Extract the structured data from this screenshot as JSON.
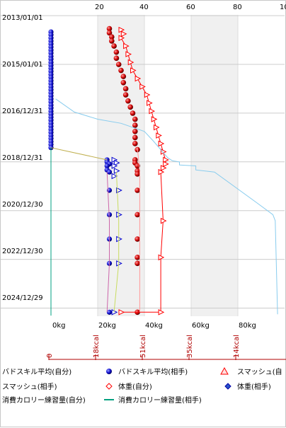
{
  "chart_data": {
    "type": "scatter",
    "orientation": "vertical-time",
    "title": "",
    "top_axis": {
      "ticks": [
        "0",
        "20",
        "40",
        "60",
        "80",
        "10"
      ],
      "range": [
        0,
        100
      ]
    },
    "date_axis": {
      "ticks": [
        "2013/01/01",
        "2015/01/01",
        "2016/12/31",
        "2018/12/31",
        "2020/12/30",
        "2022/12/30",
        "2024/12/29"
      ],
      "range": [
        "2012/12/20",
        "2025/04/30"
      ]
    },
    "weight_axis": {
      "ticks": [
        "0kg",
        "20kg",
        "40kg",
        "60kg",
        "80kg"
      ],
      "range_kg": [
        0,
        100
      ]
    },
    "calorie_axis": {
      "ticks": [
        "0",
        "18kcal",
        "51kcal",
        "35kcal",
        "14kcal"
      ]
    },
    "grid": true,
    "shaded_bands": [
      [
        20,
        40
      ],
      [
        60,
        80
      ]
    ],
    "legend": {
      "placement": "bottom",
      "items": [
        {
          "label": "バドスキル平均(自分)",
          "color": "#0000cc",
          "marker": "ball"
        },
        {
          "label": "バドスキル平均(相手)",
          "color": "#0000cc",
          "marker": "ball"
        },
        {
          "label": "スマッシュ(自",
          "color": "#ff0000",
          "marker": "triangle-up"
        },
        {
          "label": "スマッシュ(相手)",
          "color": "#ff0000",
          "marker": "diamond-open"
        },
        {
          "label": "体重(自分)",
          "color": "#ff0000",
          "marker": "diamond-open"
        },
        {
          "label": "体重(相手)",
          "color": "#0000cc",
          "marker": "diamond"
        },
        {
          "label": "消費カロリー練習量(自分)",
          "color": "#00a080",
          "marker": "line"
        },
        {
          "label": "消費カロリー練習量(相手)",
          "color": "#00a080",
          "marker": "line"
        }
      ]
    },
    "series": [
      {
        "color": "#0000cc",
        "marker": "ball-blue",
        "points": [
          {
            "x": 0,
            "date": "2013/09/01"
          },
          {
            "x": 0,
            "date": "2013/10/15"
          },
          {
            "x": 0,
            "date": "2013/12/01"
          },
          {
            "x": 0,
            "date": "2014/01/15"
          },
          {
            "x": 0,
            "date": "2014/03/01"
          },
          {
            "x": 0,
            "date": "2014/04/15"
          },
          {
            "x": 0,
            "date": "2014/06/01"
          },
          {
            "x": 0,
            "date": "2014/07/15"
          },
          {
            "x": 0,
            "date": "2014/09/01"
          },
          {
            "x": 0,
            "date": "2014/10/15"
          },
          {
            "x": 0,
            "date": "2014/12/01"
          },
          {
            "x": 0,
            "date": "2015/01/15"
          },
          {
            "x": 0,
            "date": "2015/03/01"
          },
          {
            "x": 0,
            "date": "2015/04/15"
          },
          {
            "x": 0,
            "date": "2015/06/01"
          },
          {
            "x": 0,
            "date": "2015/07/15"
          },
          {
            "x": 0,
            "date": "2015/09/01"
          },
          {
            "x": 0,
            "date": "2015/10/15"
          },
          {
            "x": 0,
            "date": "2015/12/01"
          },
          {
            "x": 0,
            "date": "2016/01/15"
          },
          {
            "x": 0,
            "date": "2016/03/01"
          },
          {
            "x": 0,
            "date": "2016/04/15"
          },
          {
            "x": 0,
            "date": "2016/06/01"
          },
          {
            "x": 0,
            "date": "2016/07/15"
          },
          {
            "x": 0,
            "date": "2016/09/01"
          },
          {
            "x": 0,
            "date": "2016/10/15"
          },
          {
            "x": 0,
            "date": "2016/12/01"
          },
          {
            "x": 0,
            "date": "2017/01/15"
          },
          {
            "x": 0,
            "date": "2017/03/01"
          },
          {
            "x": 0,
            "date": "2017/04/15"
          },
          {
            "x": 0,
            "date": "2017/06/01"
          },
          {
            "x": 0,
            "date": "2017/07/15"
          },
          {
            "x": 0,
            "date": "2017/09/01"
          },
          {
            "x": 0,
            "date": "2017/10/15"
          },
          {
            "x": 0,
            "date": "2017/12/01"
          },
          {
            "x": 0,
            "date": "2018/01/15"
          },
          {
            "x": 0,
            "date": "2018/03/01"
          },
          {
            "x": 0,
            "date": "2018/04/15"
          },
          {
            "x": 0,
            "date": "2018/06/01"
          },
          {
            "x": 24,
            "date": "2018/12/01"
          },
          {
            "x": 24,
            "date": "2019/01/01"
          },
          {
            "x": 25,
            "date": "2019/02/01"
          },
          {
            "x": 24,
            "date": "2019/03/01"
          },
          {
            "x": 24,
            "date": "2019/05/01"
          },
          {
            "x": 25,
            "date": "2019/06/01"
          },
          {
            "x": 25,
            "date": "2020/03/01"
          },
          {
            "x": 25,
            "date": "2021/03/01"
          },
          {
            "x": 25,
            "date": "2022/03/01"
          },
          {
            "x": 25,
            "date": "2023/03/01"
          },
          {
            "x": 25,
            "date": "2025/03/01"
          }
        ]
      },
      {
        "color": "#ff0000",
        "marker": "ball-red",
        "points": [
          {
            "x": 25,
            "date": "2013/07/15"
          },
          {
            "x": 25,
            "date": "2013/09/15"
          },
          {
            "x": 26,
            "date": "2013/11/15"
          },
          {
            "x": 26,
            "date": "2014/01/15"
          },
          {
            "x": 27,
            "date": "2014/04/01"
          },
          {
            "x": 28,
            "date": "2014/07/01"
          },
          {
            "x": 28,
            "date": "2014/10/01"
          },
          {
            "x": 29,
            "date": "2015/01/01"
          },
          {
            "x": 30,
            "date": "2015/04/01"
          },
          {
            "x": 31,
            "date": "2015/07/01"
          },
          {
            "x": 31,
            "date": "2015/10/01"
          },
          {
            "x": 32,
            "date": "2016/01/01"
          },
          {
            "x": 32,
            "date": "2016/04/01"
          },
          {
            "x": 33,
            "date": "2016/07/01"
          },
          {
            "x": 34,
            "date": "2016/10/01"
          },
          {
            "x": 35,
            "date": "2017/01/01"
          },
          {
            "x": 36,
            "date": "2017/04/01"
          },
          {
            "x": 36,
            "date": "2017/07/01"
          },
          {
            "x": 36,
            "date": "2017/10/01"
          },
          {
            "x": 36,
            "date": "2018/01/01"
          },
          {
            "x": 36,
            "date": "2018/04/01"
          },
          {
            "x": 37,
            "date": "2018/07/01"
          },
          {
            "x": 36,
            "date": "2018/12/01"
          },
          {
            "x": 36,
            "date": "2019/01/15"
          },
          {
            "x": 37,
            "date": "2019/03/01"
          },
          {
            "x": 37,
            "date": "2019/05/15"
          },
          {
            "x": 37,
            "date": "2019/07/01"
          },
          {
            "x": 37,
            "date": "2020/03/01"
          },
          {
            "x": 37,
            "date": "2021/03/01"
          },
          {
            "x": 37,
            "date": "2022/03/01"
          },
          {
            "x": 37,
            "date": "2022/12/01"
          },
          {
            "x": 37,
            "date": "2023/03/01"
          },
          {
            "x": 37,
            "date": "2025/03/01"
          }
        ]
      },
      {
        "color": "#ff0000",
        "marker": "triangle-open",
        "line": true,
        "points": [
          {
            "x": 30,
            "date": "2013/08/01"
          },
          {
            "x": 31,
            "date": "2013/10/01"
          },
          {
            "x": 30,
            "date": "2013/12/01"
          },
          {
            "x": 32,
            "date": "2014/04/01"
          },
          {
            "x": 33,
            "date": "2014/08/01"
          },
          {
            "x": 34,
            "date": "2014/12/01"
          },
          {
            "x": 35,
            "date": "2015/04/01"
          },
          {
            "x": 37,
            "date": "2015/08/01"
          },
          {
            "x": 39,
            "date": "2015/12/01"
          },
          {
            "x": 41,
            "date": "2016/04/01"
          },
          {
            "x": 42,
            "date": "2016/08/01"
          },
          {
            "x": 43,
            "date": "2016/12/01"
          },
          {
            "x": 44,
            "date": "2017/04/01"
          },
          {
            "x": 45,
            "date": "2017/08/01"
          },
          {
            "x": 46,
            "date": "2017/12/01"
          },
          {
            "x": 47,
            "date": "2018/04/01"
          },
          {
            "x": 48,
            "date": "2018/08/01"
          },
          {
            "x": 49,
            "date": "2018/12/01"
          },
          {
            "x": 49,
            "date": "2019/02/01"
          },
          {
            "x": 48,
            "date": "2019/04/01"
          },
          {
            "x": 47,
            "date": "2019/06/01"
          },
          {
            "x": 48,
            "date": "2021/06/01"
          },
          {
            "x": 47,
            "date": "2022/12/01"
          },
          {
            "x": 47,
            "date": "2025/03/01"
          },
          {
            "x": 30,
            "date": "2025/03/01"
          }
        ]
      },
      {
        "color": "#ff9999",
        "marker": "none",
        "line": true,
        "points": [
          {
            "x": 37,
            "date": "2018/06/01"
          },
          {
            "x": 38,
            "date": "2019/06/01"
          },
          {
            "x": 38,
            "date": "2021/06/01"
          },
          {
            "x": 38,
            "date": "2023/06/01"
          },
          {
            "x": 38,
            "date": "2025/03/01"
          }
        ]
      },
      {
        "color": "#0000cc",
        "marker": "triangle-open-blue",
        "points": [
          {
            "x": 27,
            "date": "2018/12/01"
          },
          {
            "x": 28,
            "date": "2019/01/15"
          },
          {
            "x": 27,
            "date": "2019/03/01"
          },
          {
            "x": 28,
            "date": "2019/05/15"
          },
          {
            "x": 27,
            "date": "2019/08/01"
          },
          {
            "x": 29,
            "date": "2020/03/01"
          },
          {
            "x": 29,
            "date": "2021/03/01"
          },
          {
            "x": 29,
            "date": "2022/03/01"
          },
          {
            "x": 29,
            "date": "2023/03/01"
          },
          {
            "x": 27,
            "date": "2025/03/01"
          }
        ]
      },
      {
        "color": "#c8dc60",
        "marker": "none",
        "line": true,
        "points": [
          {
            "x": 28,
            "date": "2019/06/01"
          },
          {
            "x": 29,
            "date": "2021/06/01"
          },
          {
            "x": 29,
            "date": "2023/03/01"
          },
          {
            "x": 27,
            "date": "2025/03/01"
          }
        ]
      },
      {
        "color": "#cc66aa",
        "marker": "none",
        "line": true,
        "points": [
          {
            "x": 24,
            "date": "2019/06/01"
          },
          {
            "x": 25,
            "date": "2021/06/01"
          },
          {
            "x": 25,
            "date": "2023/03/01"
          },
          {
            "x": 24,
            "date": "2025/03/01"
          }
        ]
      },
      {
        "color": "#88ccee",
        "marker": "none",
        "line": true,
        "points": [
          {
            "x": 2,
            "date": "2016/06/01"
          },
          {
            "x": 10,
            "date": "2016/12/15"
          },
          {
            "x": 20,
            "date": "2017/04/01"
          },
          {
            "x": 30,
            "date": "2017/06/01"
          },
          {
            "x": 40,
            "date": "2017/10/01"
          },
          {
            "x": 44,
            "date": "2018/03/01"
          },
          {
            "x": 50,
            "date": "2018/11/01"
          },
          {
            "x": 52,
            "date": "2018/12/15"
          },
          {
            "x": 55,
            "date": "2019/01/01"
          },
          {
            "x": 55,
            "date": "2019/02/15"
          },
          {
            "x": 62,
            "date": "2019/03/01"
          },
          {
            "x": 62,
            "date": "2019/05/01"
          },
          {
            "x": 70,
            "date": "2019/06/01"
          },
          {
            "x": 88,
            "date": "2020/09/01"
          },
          {
            "x": 95,
            "date": "2021/03/01"
          },
          {
            "x": 96,
            "date": "2021/06/01"
          },
          {
            "x": 97,
            "date": "2025/04/01"
          }
        ]
      },
      {
        "color": "#c0b050",
        "marker": "none",
        "line": true,
        "points": [
          {
            "x": 0,
            "date": "2018/06/01"
          },
          {
            "x": 24,
            "date": "2018/12/01"
          }
        ]
      },
      {
        "color": "#00a080",
        "marker": "none",
        "line": true,
        "points": [
          {
            "x": 0,
            "date": "2018/06/01"
          },
          {
            "x": 0,
            "date": "2025/04/20"
          }
        ]
      }
    ]
  }
}
